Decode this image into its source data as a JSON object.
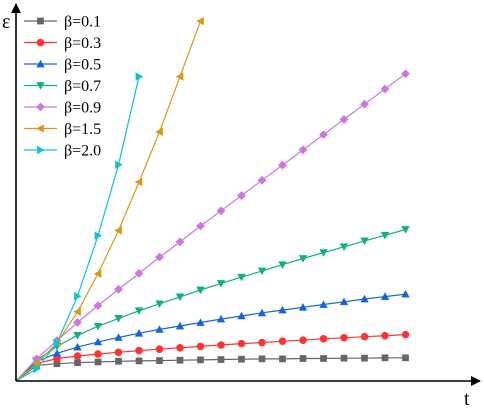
{
  "chart_data": {
    "type": "line",
    "title": "",
    "xlabel": "t",
    "ylabel": "ε",
    "grid": false,
    "legend_position": "top-left",
    "xlim": [
      0,
      100
    ],
    "ylim": [
      0,
      100
    ],
    "series": [
      {
        "name": "β=0.1",
        "color": "#666666",
        "marker": "square",
        "x": [
          0,
          5,
          10,
          15,
          20,
          25,
          30,
          35,
          40,
          45,
          50,
          55,
          60,
          65,
          70,
          75,
          80,
          85,
          90,
          95
        ],
        "y": [
          0,
          4.5,
          5.0,
          5.3,
          5.5,
          5.7,
          5.8,
          5.9,
          6.0,
          6.1,
          6.2,
          6.3,
          6.4,
          6.4,
          6.5,
          6.5,
          6.6,
          6.6,
          6.7,
          6.7
        ]
      },
      {
        "name": "β=0.3",
        "color": "#ff3333",
        "marker": "circle",
        "x": [
          0,
          5,
          10,
          15,
          20,
          25,
          30,
          35,
          40,
          45,
          50,
          55,
          60,
          65,
          70,
          75,
          80,
          85,
          90,
          95
        ],
        "y": [
          0,
          5.0,
          6.5,
          7.2,
          7.8,
          8.3,
          8.8,
          9.2,
          9.6,
          10.0,
          10.4,
          10.8,
          11.1,
          11.5,
          11.8,
          12.2,
          12.5,
          12.8,
          13.1,
          13.4
        ]
      },
      {
        "name": "β=0.5",
        "color": "#1565d8",
        "marker": "triangle-up",
        "x": [
          0,
          5,
          10,
          15,
          20,
          25,
          30,
          35,
          40,
          45,
          50,
          55,
          60,
          65,
          70,
          75,
          80,
          85,
          90,
          95
        ],
        "y": [
          0,
          5.6,
          8.0,
          9.8,
          11.3,
          12.6,
          13.8,
          14.9,
          15.9,
          16.9,
          17.9,
          18.8,
          19.7,
          20.5,
          21.3,
          22.1,
          22.9,
          23.7,
          24.4,
          25.1
        ]
      },
      {
        "name": "β=0.7",
        "color": "#11b27a",
        "marker": "triangle-down",
        "x": [
          0,
          5,
          10,
          15,
          20,
          25,
          30,
          35,
          40,
          45,
          50,
          55,
          60,
          65,
          70,
          75,
          80,
          85,
          90,
          95
        ],
        "y": [
          0,
          6.0,
          10.0,
          13.2,
          15.8,
          18.1,
          20.3,
          22.3,
          24.3,
          26.3,
          28.2,
          30.0,
          31.8,
          33.6,
          35.4,
          37.1,
          38.8,
          40.5,
          42.1,
          43.8
        ]
      },
      {
        "name": "β=0.9",
        "color": "#cc77dd",
        "marker": "diamond",
        "x": [
          0,
          5,
          10,
          15,
          20,
          25,
          30,
          35,
          40,
          45,
          50,
          55,
          60,
          65,
          70,
          75,
          80,
          85,
          90,
          95
        ],
        "y": [
          0,
          6.4,
          11.7,
          16.9,
          21.8,
          26.5,
          31.1,
          35.8,
          40.2,
          44.8,
          49.2,
          53.6,
          58.0,
          62.4,
          66.8,
          71.2,
          75.6,
          80.0,
          84.4,
          88.8
        ]
      },
      {
        "name": "β=1.5",
        "color": "#d49a1c",
        "marker": "triangle-left",
        "x": [
          0,
          5,
          10,
          15,
          20,
          25,
          30,
          35,
          40,
          45
        ],
        "y": [
          0,
          5.0,
          11.0,
          20.0,
          31.0,
          43.5,
          57.5,
          72.0,
          88.0,
          104.0
        ]
      },
      {
        "name": "β=2.0",
        "color": "#11c2d2",
        "marker": "triangle-right",
        "x": [
          0,
          5,
          10,
          15,
          20,
          25,
          30
        ],
        "y": [
          0,
          3.5,
          11.0,
          24.5,
          42.0,
          62.5,
          88.0
        ]
      }
    ]
  }
}
